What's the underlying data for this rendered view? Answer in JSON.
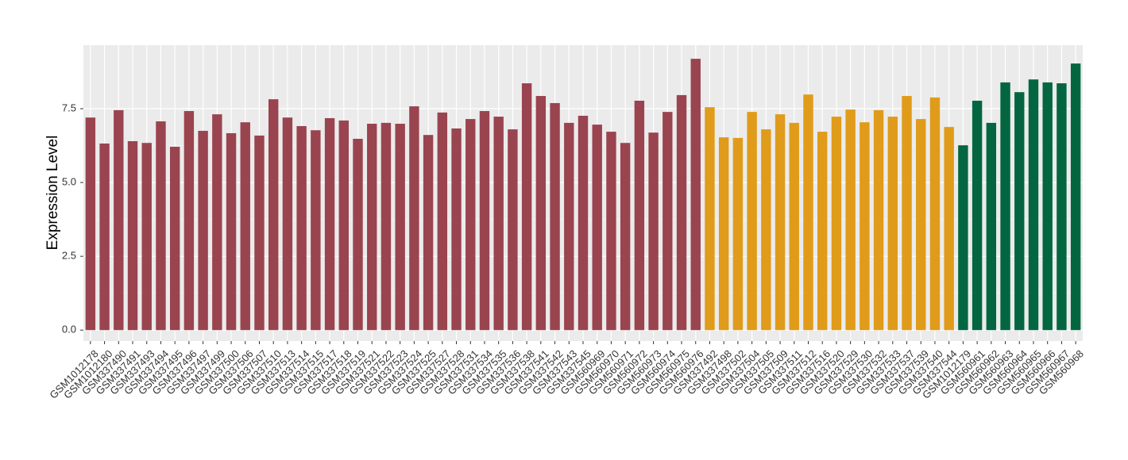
{
  "chart_data": {
    "type": "bar",
    "y_label": "Expression Level",
    "categories": [
      "GSM1012178",
      "GSM1012180",
      "GSM337490",
      "GSM337491",
      "GSM337493",
      "GSM337494",
      "GSM337495",
      "GSM337496",
      "GSM337497",
      "GSM337499",
      "GSM337500",
      "GSM337506",
      "GSM337507",
      "GSM337510",
      "GSM337513",
      "GSM337514",
      "GSM337515",
      "GSM337517",
      "GSM337518",
      "GSM337519",
      "GSM337521",
      "GSM337522",
      "GSM337523",
      "GSM337524",
      "GSM337525",
      "GSM337527",
      "GSM337528",
      "GSM337531",
      "GSM337534",
      "GSM337535",
      "GSM337536",
      "GSM337538",
      "GSM337541",
      "GSM337542",
      "GSM337543",
      "GSM337545",
      "GSM560969",
      "GSM560970",
      "GSM560971",
      "GSM560972",
      "GSM560973",
      "GSM560974",
      "GSM560975",
      "GSM560976",
      "GSM337492",
      "GSM337498",
      "GSM337502",
      "GSM337504",
      "GSM337505",
      "GSM337509",
      "GSM337511",
      "GSM337512",
      "GSM337516",
      "GSM337520",
      "GSM337529",
      "GSM337530",
      "GSM337532",
      "GSM337533",
      "GSM337537",
      "GSM337539",
      "GSM337540",
      "GSM337544",
      "GSM1012179",
      "GSM560961",
      "GSM560962",
      "GSM560963",
      "GSM560964",
      "GSM560965",
      "GSM560966",
      "GSM560967",
      "GSM560968"
    ],
    "values": [
      7.2,
      6.32,
      7.45,
      6.4,
      6.34,
      7.07,
      6.21,
      7.42,
      6.75,
      7.31,
      6.67,
      7.04,
      6.59,
      7.82,
      7.2,
      6.91,
      6.77,
      7.18,
      7.1,
      6.48,
      6.99,
      7.02,
      6.99,
      7.58,
      6.61,
      7.37,
      6.83,
      7.15,
      7.42,
      7.23,
      6.8,
      8.36,
      7.93,
      7.69,
      7.02,
      7.26,
      6.96,
      6.72,
      6.34,
      7.77,
      6.69,
      7.39,
      7.96,
      9.19,
      7.55,
      6.53,
      6.51,
      7.39,
      6.8,
      7.31,
      7.02,
      7.98,
      6.72,
      7.23,
      7.47,
      7.04,
      7.45,
      7.23,
      7.93,
      7.15,
      7.88,
      6.88,
      6.26,
      7.77,
      7.02,
      8.39,
      8.06,
      8.49,
      8.39,
      8.36,
      9.03
    ],
    "bar_colors": [
      "#9a4450",
      "#9a4450",
      "#9a4450",
      "#9a4450",
      "#9a4450",
      "#9a4450",
      "#9a4450",
      "#9a4450",
      "#9a4450",
      "#9a4450",
      "#9a4450",
      "#9a4450",
      "#9a4450",
      "#9a4450",
      "#9a4450",
      "#9a4450",
      "#9a4450",
      "#9a4450",
      "#9a4450",
      "#9a4450",
      "#9a4450",
      "#9a4450",
      "#9a4450",
      "#9a4450",
      "#9a4450",
      "#9a4450",
      "#9a4450",
      "#9a4450",
      "#9a4450",
      "#9a4450",
      "#9a4450",
      "#9a4450",
      "#9a4450",
      "#9a4450",
      "#9a4450",
      "#9a4450",
      "#9a4450",
      "#9a4450",
      "#9a4450",
      "#9a4450",
      "#9a4450",
      "#9a4450",
      "#9a4450",
      "#9a4450",
      "#e09b1a",
      "#e09b1a",
      "#e09b1a",
      "#e09b1a",
      "#e09b1a",
      "#e09b1a",
      "#e09b1a",
      "#e09b1a",
      "#e09b1a",
      "#e09b1a",
      "#e09b1a",
      "#e09b1a",
      "#e09b1a",
      "#e09b1a",
      "#e09b1a",
      "#e09b1a",
      "#e09b1a",
      "#e09b1a",
      "#036640",
      "#036640",
      "#036640",
      "#036640",
      "#036640",
      "#036640",
      "#036640",
      "#036640",
      "#036640"
    ],
    "ylim": [
      -0.37,
      9.65
    ],
    "yticks": [
      {
        "value": 0,
        "label": "0.0"
      },
      2.5,
      {
        "value": 5,
        "label": "5.0"
      },
      7.5
    ],
    "grid": true
  }
}
